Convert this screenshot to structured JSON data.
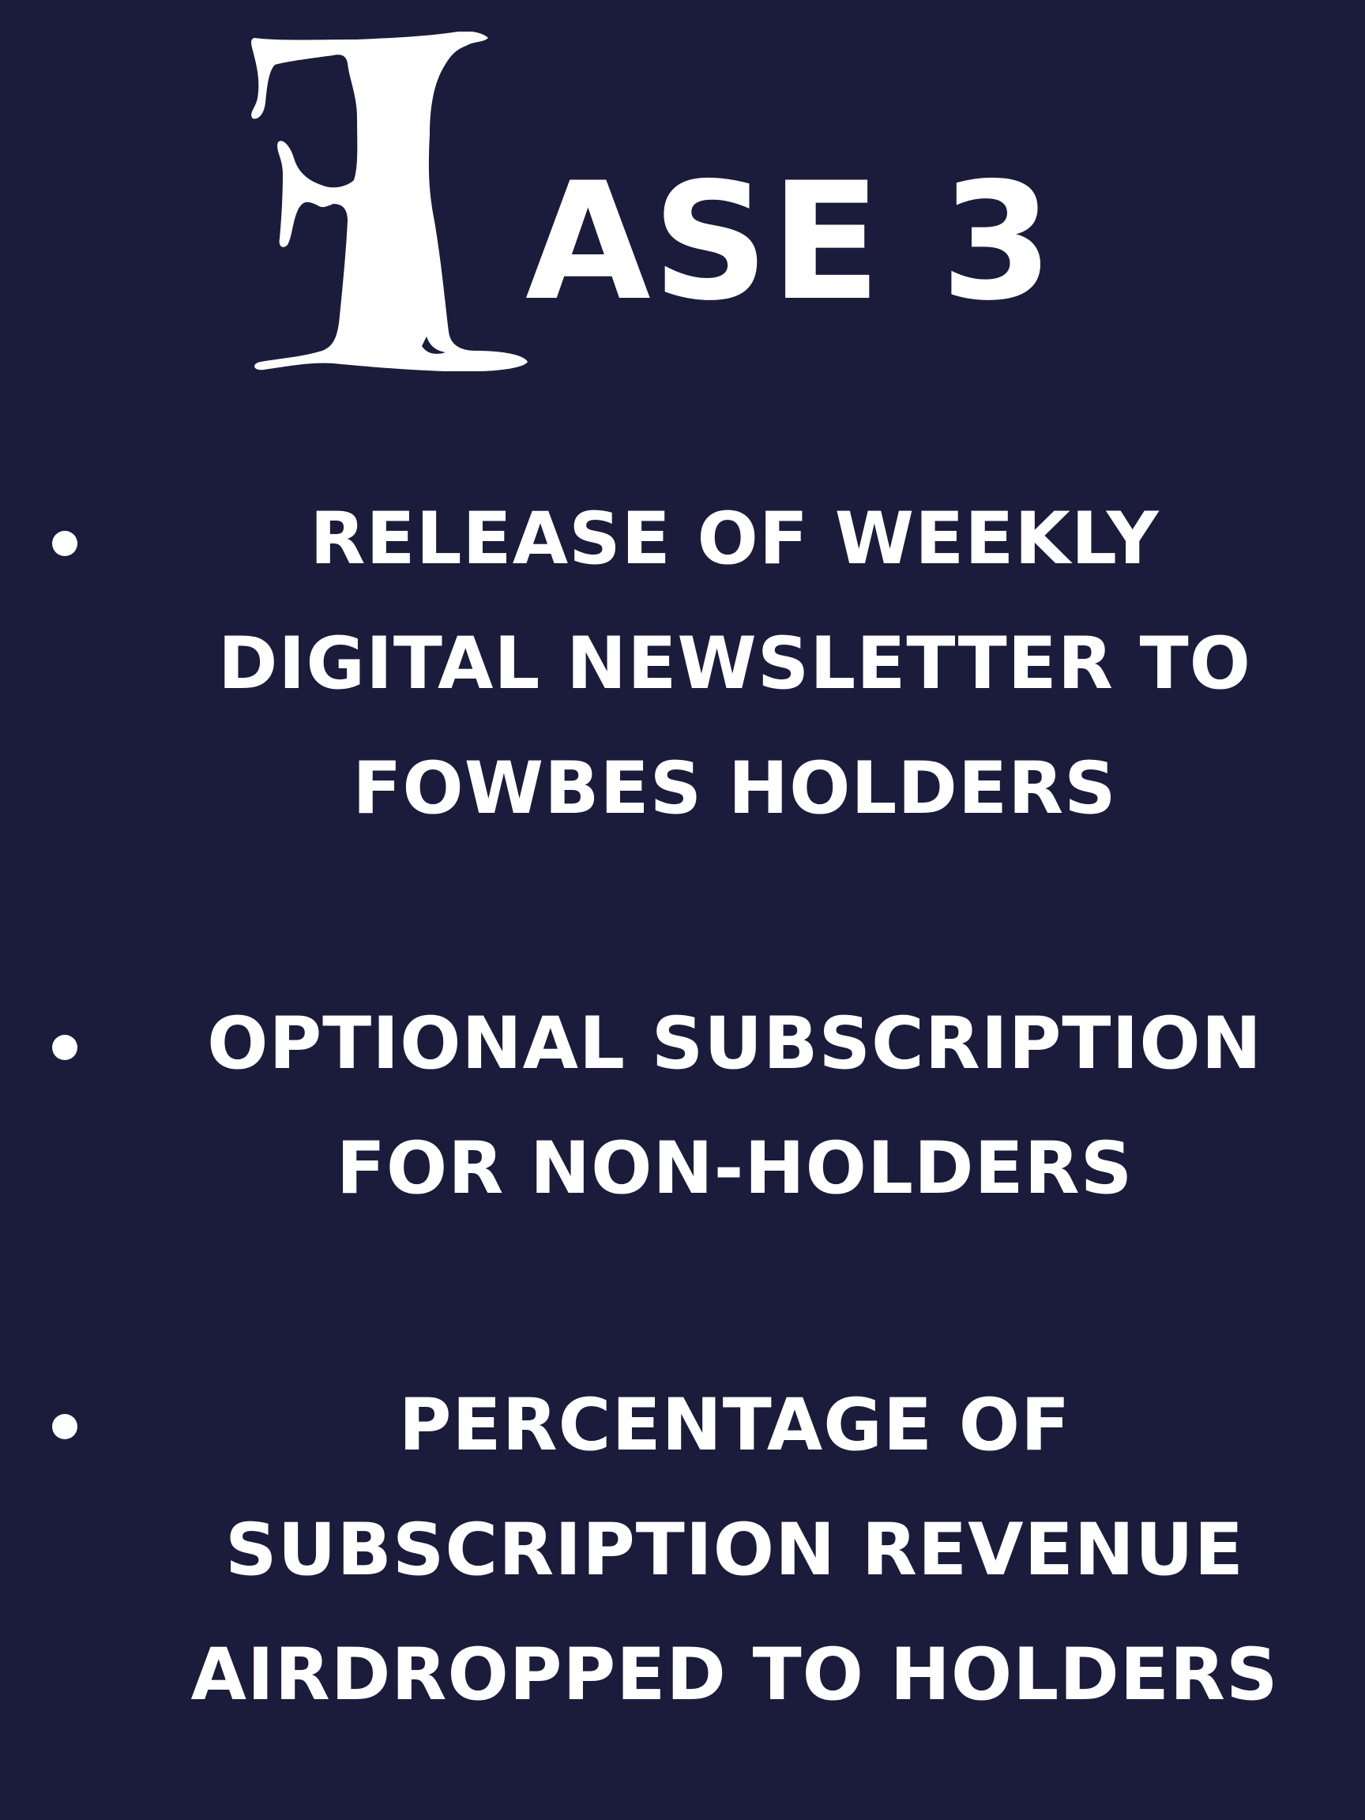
{
  "colors": {
    "background": "#1b1c3b",
    "text": "#ffffff"
  },
  "title": {
    "initial": "F",
    "rest": "ASE 3"
  },
  "bullets": [
    {
      "lines": [
        "RELEASE OF WEEKLY",
        "DIGITAL NEWSLETTER TO",
        "FOWBES HOLDERS"
      ]
    },
    {
      "lines": [
        "OPTIONAL SUBSCRIPTION",
        "FOR NON-HOLDERS"
      ]
    },
    {
      "lines": [
        "PERCENTAGE OF",
        "SUBSCRIPTION REVENUE",
        "AIRDROPPED TO HOLDERS"
      ]
    }
  ]
}
